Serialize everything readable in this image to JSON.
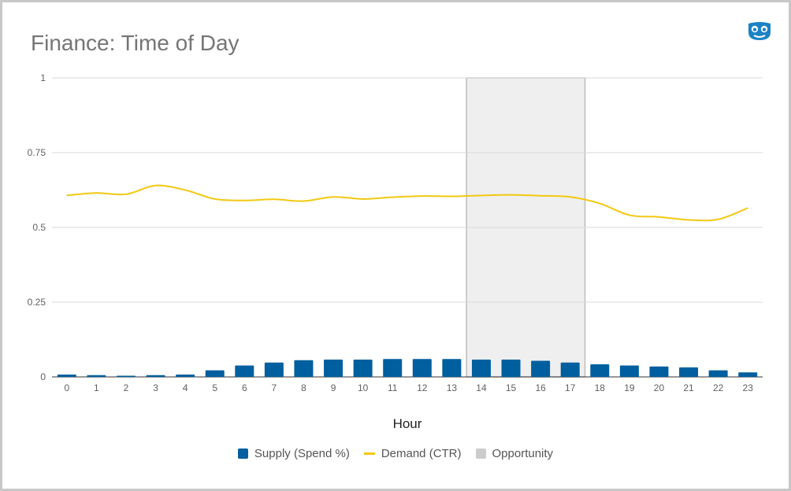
{
  "colors": {
    "supply": "#005f9e",
    "demand": "#f2c811",
    "opportunity_fill": "#efefef",
    "opportunity_stroke": "#bdbdbd",
    "opportunity_legend": "#cccccc",
    "grid": "#d9d9d9",
    "title": "#757575",
    "logo": "#1a82c4"
  },
  "logo": {
    "icon": "owl-logo-icon"
  },
  "chart_data": {
    "type": "bar",
    "title": "Finance: Time of Day",
    "xlabel": "Hour",
    "ylabel": "",
    "ylim": [
      0,
      1
    ],
    "yticks": [
      "0",
      "0.25",
      "0.5",
      "0.75",
      "1"
    ],
    "ytick_values": [
      0,
      0.25,
      0.5,
      0.75,
      1
    ],
    "categories": [
      "0",
      "1",
      "2",
      "3",
      "4",
      "5",
      "6",
      "7",
      "8",
      "9",
      "10",
      "11",
      "12",
      "13",
      "14",
      "15",
      "16",
      "17",
      "18",
      "19",
      "20",
      "21",
      "22",
      "23"
    ],
    "series": [
      {
        "name": "Supply (Spend %)",
        "type": "bar",
        "values": [
          0.008,
          0.006,
          0.004,
          0.006,
          0.008,
          0.022,
          0.038,
          0.048,
          0.056,
          0.058,
          0.058,
          0.06,
          0.06,
          0.06,
          0.058,
          0.058,
          0.054,
          0.048,
          0.042,
          0.038,
          0.035,
          0.032,
          0.022,
          0.015
        ]
      },
      {
        "name": "Demand (CTR)",
        "type": "line",
        "values": [
          0.607,
          0.615,
          0.611,
          0.64,
          0.625,
          0.595,
          0.59,
          0.594,
          0.588,
          0.602,
          0.595,
          0.601,
          0.605,
          0.604,
          0.607,
          0.609,
          0.606,
          0.602,
          0.58,
          0.541,
          0.535,
          0.525,
          0.527,
          0.565
        ]
      },
      {
        "name": "Opportunity",
        "type": "range",
        "range": [
          "14",
          "17"
        ]
      }
    ],
    "grid": true,
    "legend_position": "bottom"
  }
}
